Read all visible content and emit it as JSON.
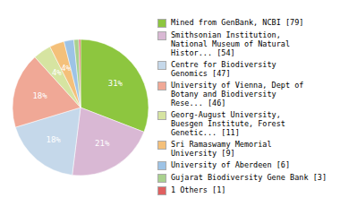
{
  "chart_data": {
    "type": "pie",
    "categories": [
      "Mined from GenBank, NCBI [79]",
      "Smithsonian Institution,\nNational Museum of Natural\nHistor... [54]",
      "Centre for Biodiversity\nGenomics [47]",
      "University of Vienna, Dept of\nBotany and Biodiversity\nRese... [46]",
      "Georg-August University,\nBuesgen Institute, Forest\nGenetic... [11]",
      "Sri Ramaswamy Memorial\nUniversity [9]",
      "University of Aberdeen [6]",
      "Gujarat Biodiversity Gene Bank [3]",
      "1 Others [1]"
    ],
    "values": [
      79,
      54,
      47,
      46,
      11,
      9,
      6,
      3,
      1
    ],
    "value_labels": [
      "31%",
      "21%",
      "18%",
      "18%",
      "4%",
      "4%",
      null,
      null,
      null
    ],
    "colors": [
      "#8dc63f",
      "#d9b8d4",
      "#c5d8ea",
      "#f0a896",
      "#d6e4a1",
      "#f4c07a",
      "#9dc3e6",
      "#a9d18e",
      "#e06060"
    ],
    "legend": "right"
  }
}
